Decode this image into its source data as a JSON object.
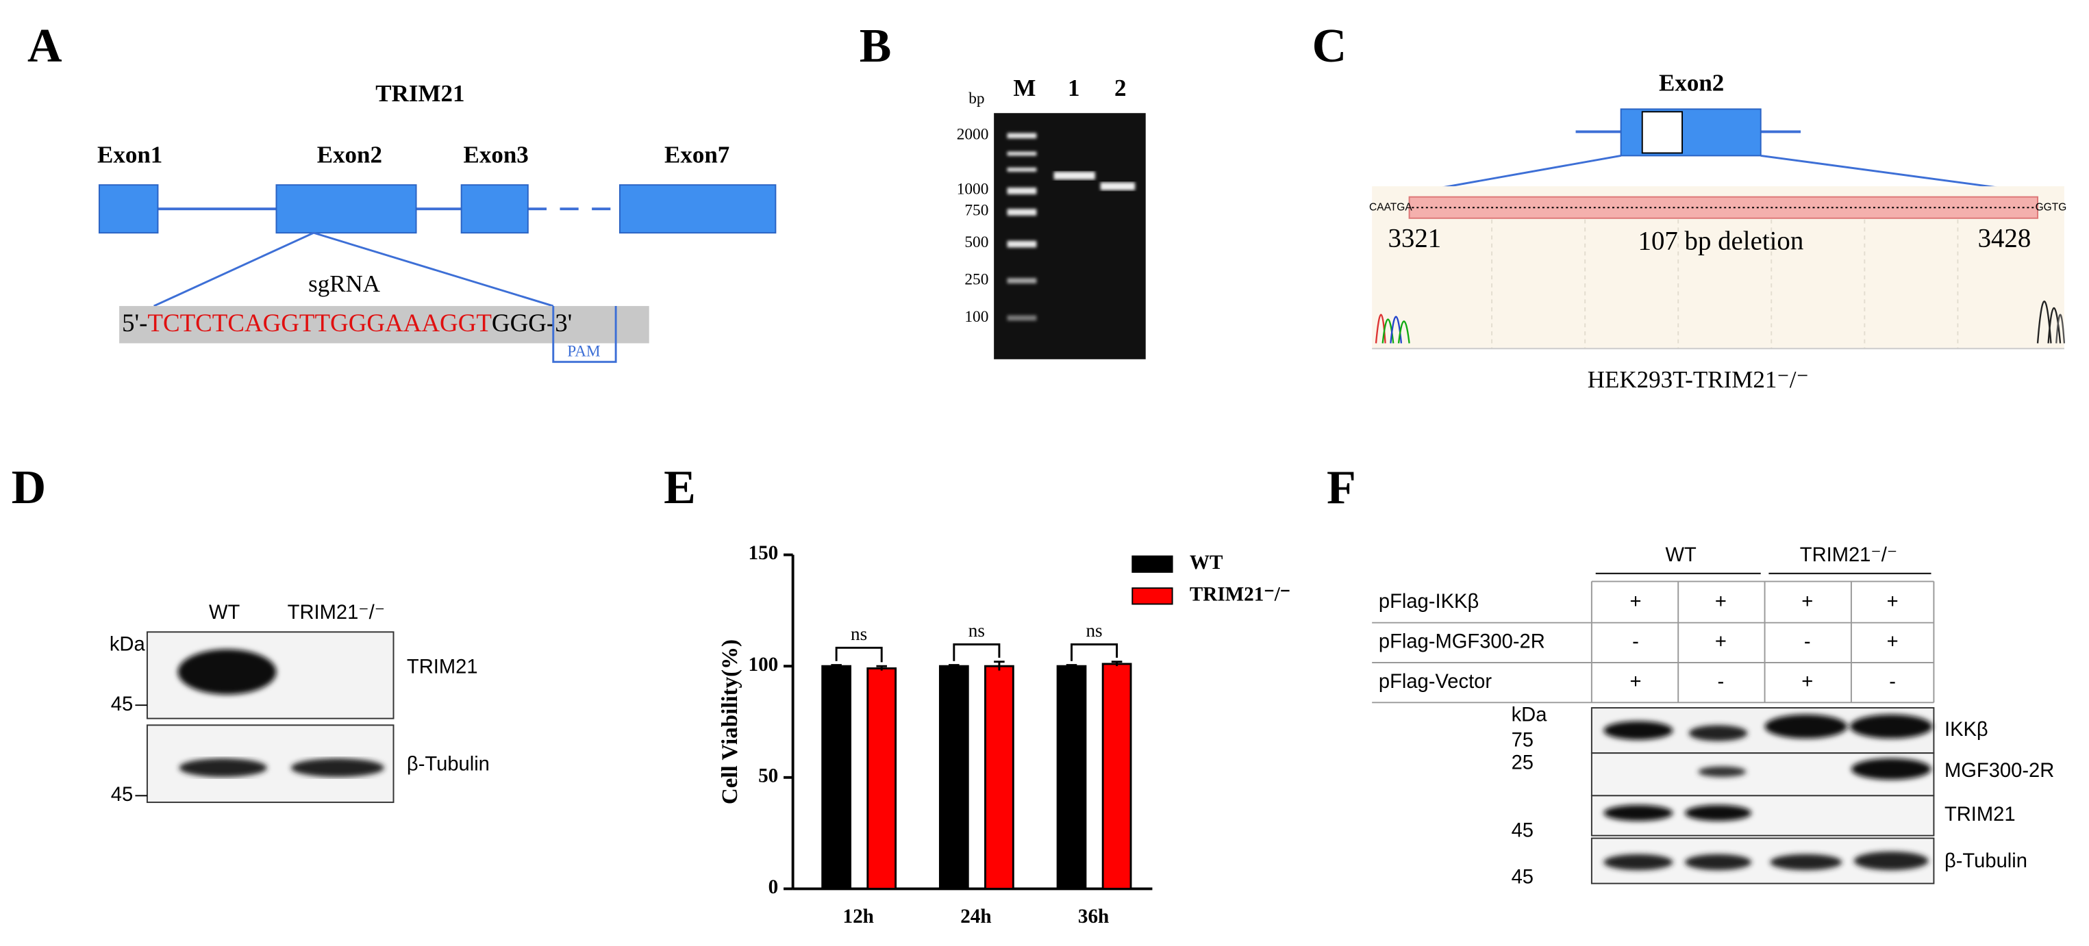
{
  "panels": {
    "A": {
      "label": "A",
      "title": "TRIM21",
      "exons": [
        "Exon1",
        "Exon2",
        "Exon3",
        "Exon7"
      ],
      "sgrna_label": "sgRNA",
      "seq_start": "5'-",
      "seq_target": "TCTCTCAGGTTGGGAAAGGT",
      "seq_end": "GGG-3'",
      "pam": "PAM"
    },
    "B": {
      "label": "B",
      "unit": "bp",
      "lanes": [
        "M",
        "1",
        "2"
      ],
      "ladder": [
        "2000",
        "1000",
        "750",
        "500",
        "250",
        "100"
      ]
    },
    "C": {
      "label": "C",
      "exon": "Exon2",
      "left_seq": "CAATGA",
      "right_seq": "GGTG",
      "start": "3321",
      "end": "3428",
      "deletion": "107 bp deletion",
      "caption": "HEK293T-TRIM21⁻/⁻"
    },
    "D": {
      "label": "D",
      "lanes": [
        "WT",
        "TRIM21⁻/⁻"
      ],
      "kda": "kDa",
      "markers": [
        "45",
        "45"
      ],
      "proteins": [
        "TRIM21",
        "β-Tubulin"
      ]
    },
    "E": {
      "label": "E"
    },
    "F": {
      "label": "F",
      "groups": [
        "WT",
        "TRIM21⁻/⁻"
      ],
      "rows": [
        {
          "name": "pFlag-IKKβ",
          "signs": [
            "+",
            "+",
            "+",
            "+"
          ]
        },
        {
          "name": "pFlag-MGF300-2R",
          "signs": [
            "-",
            "+",
            "-",
            "+"
          ]
        },
        {
          "name": "pFlag-Vector",
          "signs": [
            "+",
            "-",
            "+",
            "-"
          ]
        }
      ],
      "kda": "kDa",
      "markers": [
        "75",
        "25",
        "45",
        "45"
      ],
      "proteins": [
        "IKKβ",
        "MGF300-2R",
        "TRIM21",
        "β-Tubulin"
      ]
    }
  },
  "chart_data": {
    "type": "bar",
    "ylabel": "Cell Viability(%)",
    "categories": [
      "12h",
      "24h",
      "36h"
    ],
    "series": [
      {
        "name": "WT",
        "color": "#000000",
        "values": [
          100,
          100,
          100
        ],
        "errors": [
          0.5,
          0.5,
          0.5
        ]
      },
      {
        "name": "TRIM21⁻/⁻",
        "color": "#ff0000",
        "values": [
          99,
          100,
          101
        ],
        "errors": [
          1,
          2,
          1
        ]
      }
    ],
    "ylim": [
      0,
      150
    ],
    "yticks": [
      0,
      50,
      100,
      150
    ],
    "annotations": [
      "ns",
      "ns",
      "ns"
    ]
  }
}
